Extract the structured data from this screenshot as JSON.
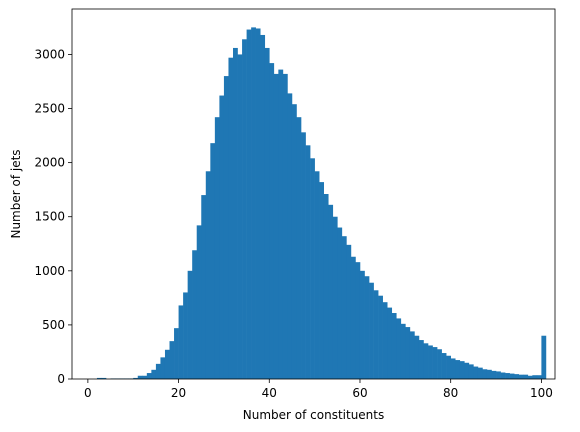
{
  "chart_data": {
    "type": "bar",
    "subtype": "histogram",
    "title": "",
    "xlabel": "Number of constituents",
    "ylabel": "Number of jets",
    "xlim": [
      -3.5,
      103
    ],
    "ylim": [
      0,
      3420
    ],
    "xticks": [
      0,
      20,
      40,
      60,
      80,
      100
    ],
    "yticks": [
      0,
      500,
      1000,
      1500,
      2000,
      2500,
      3000
    ],
    "bar_color": "#1f77b4",
    "grid": false,
    "legend": "none",
    "bin_start": 0,
    "bin_width": 1,
    "values": [
      0,
      0,
      10,
      10,
      0,
      5,
      5,
      5,
      5,
      5,
      10,
      30,
      30,
      55,
      85,
      140,
      200,
      270,
      350,
      470,
      680,
      800,
      1000,
      1190,
      1420,
      1700,
      1920,
      2180,
      2420,
      2620,
      2800,
      2970,
      3060,
      3000,
      3140,
      3230,
      3250,
      3240,
      3180,
      3060,
      2920,
      2820,
      2860,
      2820,
      2640,
      2540,
      2420,
      2280,
      2160,
      2040,
      1920,
      1820,
      1710,
      1610,
      1500,
      1400,
      1320,
      1240,
      1130,
      1080,
      1000,
      950,
      890,
      820,
      770,
      710,
      660,
      610,
      560,
      510,
      480,
      440,
      400,
      360,
      330,
      310,
      295,
      275,
      240,
      215,
      190,
      175,
      165,
      150,
      135,
      115,
      105,
      90,
      85,
      75,
      70,
      60,
      55,
      50,
      45,
      40,
      40,
      30,
      35,
      35,
      400
    ]
  }
}
